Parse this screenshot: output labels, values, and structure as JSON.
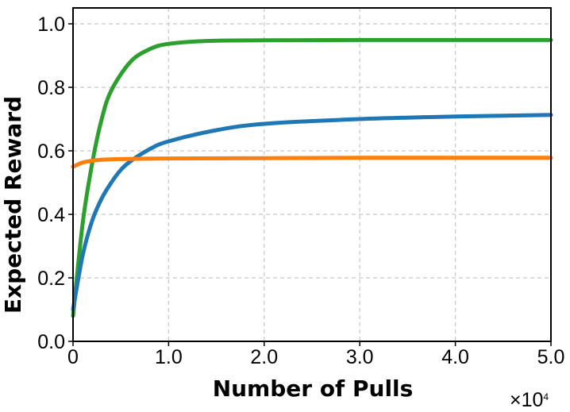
{
  "chart_data": {
    "type": "line",
    "title": "",
    "xlabel": "Number of Pulls",
    "ylabel": "Expected Reward",
    "x_multiplier_label": "×10",
    "x_multiplier_exp": "4",
    "xlim": [
      0,
      50000
    ],
    "ylim": [
      0,
      1.05
    ],
    "grid": true,
    "legend": "none",
    "x_ticks": [
      0,
      10000,
      20000,
      30000,
      40000,
      50000
    ],
    "x_tick_labels": [
      "0",
      "1.0",
      "2.0",
      "3.0",
      "4.0",
      "5.0"
    ],
    "y_ticks": [
      0.0,
      0.2,
      0.4,
      0.6,
      0.8,
      1.0
    ],
    "y_tick_labels": [
      "0.0",
      "0.2",
      "0.4",
      "0.6",
      "0.8",
      "1.0"
    ],
    "series": [
      {
        "color": "#2ca02c",
        "x": [
          0,
          1000,
          2000,
          3000,
          4000,
          6000,
          8000,
          10000,
          14000,
          20000,
          30000,
          40000,
          50000
        ],
        "y": [
          0.08,
          0.37,
          0.56,
          0.7,
          0.79,
          0.88,
          0.92,
          0.937,
          0.946,
          0.948,
          0.949,
          0.949,
          0.949
        ]
      },
      {
        "color": "#1f77b4",
        "x": [
          0,
          1000,
          2000,
          3000,
          4000,
          5000,
          6000,
          8000,
          10000,
          15000,
          20000,
          30000,
          40000,
          50000
        ],
        "y": [
          0.1,
          0.27,
          0.38,
          0.45,
          0.5,
          0.54,
          0.567,
          0.605,
          0.63,
          0.665,
          0.685,
          0.7,
          0.708,
          0.713
        ]
      },
      {
        "color": "#ff7f0e",
        "x": [
          0,
          1000,
          2000,
          3000,
          5000,
          10000,
          20000,
          30000,
          40000,
          50000
        ],
        "y": [
          0.55,
          0.563,
          0.569,
          0.572,
          0.574,
          0.576,
          0.577,
          0.578,
          0.578,
          0.578
        ]
      }
    ]
  }
}
